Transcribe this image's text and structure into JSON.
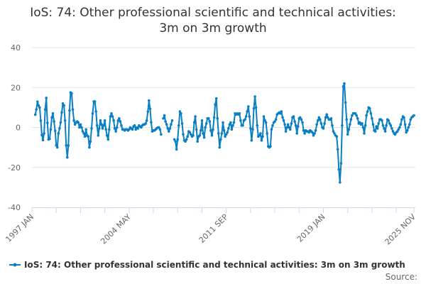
{
  "chart_data": {
    "type": "line",
    "title_lines": [
      "IoS: 74: Other professional scientific and technical activities:",
      "3m on 3m growth"
    ],
    "xlabel": "",
    "ylabel": "",
    "x_start": "1997 APR",
    "x_end": "2025 NOV",
    "frequency": "monthly",
    "x_tick_labels": [
      "1997 JAN",
      "2004 MAY",
      "2011 SEP",
      "2019 JAN",
      "2025 NOV"
    ],
    "y_ticks": [
      40,
      20,
      0,
      -20,
      -40
    ],
    "ylim": [
      -40,
      40
    ],
    "grid": "horizontal",
    "legend_position": "bottom",
    "source_label": "Source:",
    "series": [
      {
        "name": "IoS: 74: Other professional scientific and technical activities: 3m on 3m growth",
        "color": "#0a7fc4",
        "values": [
          6.4,
          9,
          12.9,
          11,
          10,
          3.4,
          -3.8,
          -6.3,
          -3,
          9,
          14.8,
          2.3,
          -6,
          -5.7,
          -1,
          5,
          7,
          3,
          -1.7,
          -9,
          -10,
          -3,
          -0.5,
          2.5,
          7.5,
          12,
          11,
          3.5,
          -9,
          -15,
          -9,
          8.5,
          17.5,
          17,
          9,
          3.5,
          1.5,
          2.5,
          3,
          2.5,
          0,
          1.5,
          0,
          -2,
          -3,
          -4.5,
          -1,
          -4,
          -4.5,
          -10,
          -7,
          -0.5,
          7,
          13,
          13,
          8,
          1,
          -4,
          -0.5,
          3.5,
          1.5,
          -0.5,
          1,
          3.5,
          -1,
          -4,
          -6,
          -1,
          5.5,
          7,
          5.5,
          3.5,
          -0.5,
          -2,
          0,
          3.5,
          4.5,
          3,
          1,
          -1,
          -1,
          -1.5,
          -1,
          -1,
          -1.5,
          -1,
          0,
          -0.5,
          -1,
          0.5,
          1,
          -1,
          0,
          -0.5,
          1,
          0.5,
          0,
          1,
          1.5,
          1.5,
          2,
          3.5,
          8,
          13.5,
          9.3,
          2.6,
          -2,
          -1.5,
          -1.5,
          -1,
          -0.5,
          0,
          0,
          -1,
          -3.5,
          null,
          4.5,
          6,
          3,
          1.5,
          -0.5,
          -2,
          -0.5,
          1.5,
          3.5,
          null,
          -6,
          -7,
          -11,
          -6,
          1,
          8,
          7,
          2,
          -3.5,
          -6.5,
          -7,
          -6,
          -4.5,
          -2,
          -2.5,
          -3.5,
          -4.5,
          -4,
          2.5,
          5.5,
          -1,
          -7,
          -4.5,
          -4,
          -1.5,
          3.5,
          -3,
          -5,
          0,
          2,
          4.5,
          4.5,
          3,
          -1.5,
          -4,
          -1,
          5,
          11.5,
          14.5,
          4.5,
          -3,
          -10,
          -6,
          -3,
          2.5,
          -1.5,
          -4.5,
          -3.5,
          -2.5,
          -0.5,
          1.5,
          2.5,
          -1,
          1,
          2.5,
          7,
          6.5,
          7,
          6.5,
          7,
          3.5,
          1,
          1,
          3.5,
          4,
          5.5,
          8,
          10.5,
          5.5,
          -0.5,
          -6.5,
          -1,
          9.5,
          15.5,
          10,
          1,
          -4.5,
          -4,
          -3,
          -6.5,
          -4.5,
          5.5,
          3.5,
          2.5,
          -3,
          -9.5,
          -10,
          -9.5,
          -1,
          1,
          2.5,
          3,
          4,
          6.5,
          7,
          7.5,
          7,
          8,
          5,
          3.5,
          1.5,
          -2,
          0,
          1.5,
          0,
          -1,
          2,
          5,
          5.5,
          3,
          1,
          -3,
          0.5,
          4.5,
          5,
          4,
          2.5,
          -1.5,
          -3,
          -1.5,
          -2,
          -2,
          -2.5,
          -1.5,
          -2,
          -2.5,
          -4,
          -3,
          -1.5,
          1.5,
          3.5,
          5,
          4,
          2,
          0,
          -0.5,
          2,
          5,
          6.5,
          5,
          4,
          4,
          4.5,
          1,
          -2,
          -3,
          -4,
          -4.5,
          -11,
          -21,
          -27.5,
          -18,
          1,
          20.5,
          22,
          12.5,
          4,
          -3.5,
          -1,
          1.5,
          4,
          6,
          7,
          7,
          7,
          6,
          4.5,
          2,
          2.5,
          1.5,
          2,
          0,
          -3,
          1,
          6,
          8,
          10,
          9.5,
          7,
          4.5,
          1.5,
          -1.5,
          -2,
          0.5,
          -0.5,
          2,
          4,
          4,
          3.5,
          1,
          -0.5,
          -2,
          1,
          4,
          3.5,
          2,
          1,
          -0.5,
          -2,
          -3,
          -3.5,
          -2.5,
          -2,
          -1,
          0,
          1.5,
          4,
          5.5,
          5,
          1.5,
          -2.5,
          -1.5,
          0,
          1.5,
          4,
          5,
          5.5,
          6
        ]
      }
    ]
  }
}
